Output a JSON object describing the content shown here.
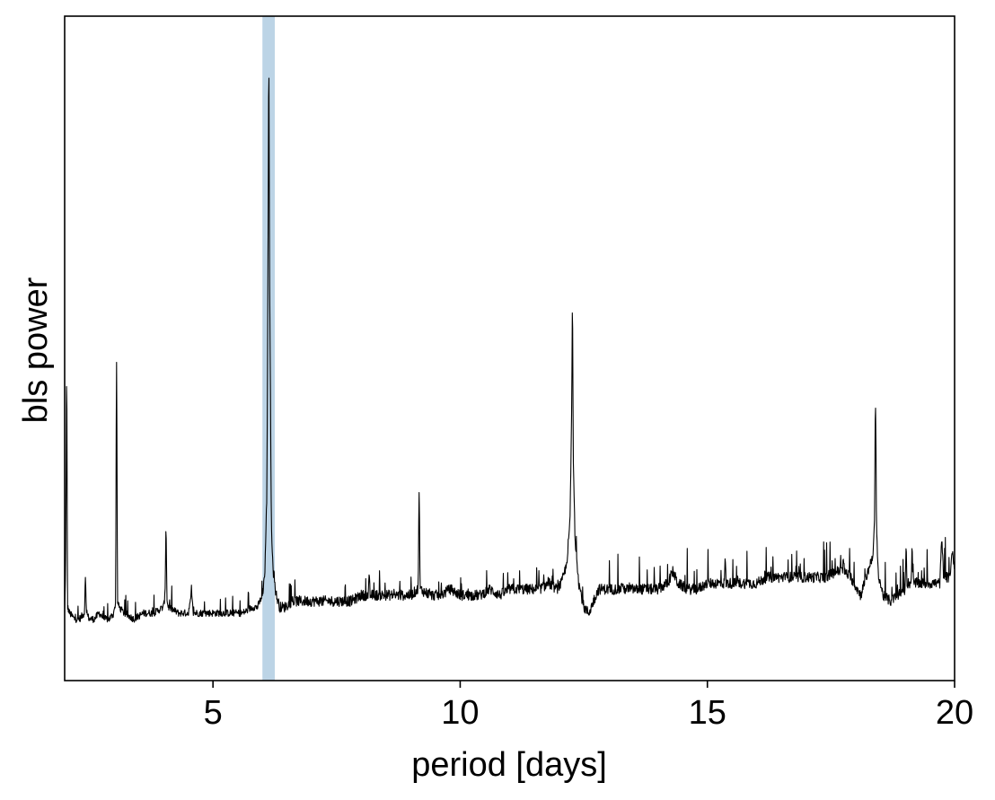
{
  "chart_data": {
    "type": "line",
    "title": "",
    "xlabel": "period [days]",
    "ylabel": "bls power",
    "xlim": [
      2,
      20
    ],
    "ylim": [
      0.0,
      1.0
    ],
    "x_ticks": [
      5,
      10,
      15,
      20
    ],
    "x_tick_labels": [
      "5",
      "10",
      "15",
      "20"
    ],
    "y_ticks": [],
    "grid": false,
    "legend": "none",
    "line_color": "#000000",
    "highlight": {
      "x_range": [
        6.0,
        6.25
      ],
      "color": "#bcd4e6"
    },
    "peaks": [
      {
        "x": 2.04,
        "y": 0.44
      },
      {
        "x": 2.42,
        "y": 0.11
      },
      {
        "x": 3.05,
        "y": 0.47
      },
      {
        "x": 4.05,
        "y": 0.19
      },
      {
        "x": 4.57,
        "y": 0.08
      },
      {
        "x": 6.13,
        "y": 0.96
      },
      {
        "x": 8.16,
        "y": 0.11
      },
      {
        "x": 9.17,
        "y": 0.25
      },
      {
        "x": 12.27,
        "y": 0.56
      },
      {
        "x": 13.27,
        "y": 0.1
      },
      {
        "x": 15.36,
        "y": 0.14
      },
      {
        "x": 17.75,
        "y": 0.14
      },
      {
        "x": 18.4,
        "y": 0.4
      },
      {
        "x": 19.02,
        "y": 0.16
      },
      {
        "x": 19.14,
        "y": 0.16
      },
      {
        "x": 19.74,
        "y": 0.17
      },
      {
        "x": 19.95,
        "y": 0.15
      }
    ],
    "series": [
      {
        "x": [
          2.0,
          2.02,
          2.04,
          2.06,
          2.1,
          2.2,
          2.3,
          2.4,
          2.42,
          2.44,
          2.5,
          2.6,
          2.7,
          2.8,
          2.9,
          3.0,
          3.03,
          3.05,
          3.07,
          3.1,
          3.2,
          3.4,
          3.6,
          3.8,
          4.0,
          4.03,
          4.05,
          4.07,
          4.1,
          4.3,
          4.5,
          4.57,
          4.6,
          4.8,
          5.0,
          5.2,
          5.4,
          5.6,
          5.8,
          5.9,
          6.0,
          6.05,
          6.09,
          6.11,
          6.13,
          6.15,
          6.18,
          6.22,
          6.28,
          6.35,
          6.45,
          6.6,
          6.8,
          7.0,
          7.2,
          7.4,
          7.6,
          7.8,
          8.0,
          8.14,
          8.16,
          8.18,
          8.4,
          8.6,
          8.8,
          9.0,
          9.15,
          9.17,
          9.19,
          9.4,
          9.6,
          9.8,
          10.0,
          10.2,
          10.4,
          10.6,
          10.8,
          11.0,
          11.2,
          11.4,
          11.6,
          11.8,
          11.95,
          12.05,
          12.15,
          12.22,
          12.25,
          12.27,
          12.29,
          12.32,
          12.4,
          12.5,
          12.6,
          12.7,
          12.8,
          13.0,
          13.25,
          13.27,
          13.29,
          13.5,
          13.8,
          14.0,
          14.2,
          14.3,
          14.4,
          14.6,
          14.8,
          15.0,
          15.2,
          15.34,
          15.36,
          15.38,
          15.6,
          15.8,
          16.0,
          16.2,
          16.4,
          16.6,
          16.8,
          17.0,
          17.2,
          17.4,
          17.6,
          17.73,
          17.75,
          17.77,
          17.9,
          18.1,
          18.25,
          18.35,
          18.38,
          18.4,
          18.42,
          18.45,
          18.55,
          18.7,
          18.85,
          19.0,
          19.02,
          19.04,
          19.12,
          19.14,
          19.16,
          19.3,
          19.5,
          19.7,
          19.74,
          19.78,
          19.9,
          19.95,
          20.0
        ],
        "y": [
          0.05,
          0.12,
          0.44,
          0.06,
          0.05,
          0.04,
          0.04,
          0.05,
          0.11,
          0.05,
          0.04,
          0.04,
          0.05,
          0.04,
          0.04,
          0.05,
          0.07,
          0.47,
          0.07,
          0.06,
          0.05,
          0.04,
          0.05,
          0.05,
          0.06,
          0.08,
          0.19,
          0.07,
          0.06,
          0.05,
          0.05,
          0.08,
          0.05,
          0.05,
          0.05,
          0.05,
          0.05,
          0.05,
          0.06,
          0.06,
          0.08,
          0.12,
          0.25,
          0.6,
          0.96,
          0.55,
          0.2,
          0.12,
          0.08,
          0.06,
          0.06,
          0.07,
          0.07,
          0.07,
          0.07,
          0.07,
          0.07,
          0.07,
          0.08,
          0.08,
          0.11,
          0.08,
          0.08,
          0.08,
          0.08,
          0.08,
          0.09,
          0.25,
          0.09,
          0.08,
          0.08,
          0.09,
          0.08,
          0.08,
          0.08,
          0.09,
          0.08,
          0.09,
          0.09,
          0.09,
          0.09,
          0.1,
          0.09,
          0.1,
          0.13,
          0.2,
          0.35,
          0.56,
          0.3,
          0.18,
          0.1,
          0.06,
          0.05,
          0.07,
          0.09,
          0.09,
          0.09,
          0.1,
          0.09,
          0.09,
          0.09,
          0.09,
          0.1,
          0.12,
          0.1,
          0.09,
          0.09,
          0.1,
          0.1,
          0.1,
          0.14,
          0.1,
          0.1,
          0.1,
          0.1,
          0.11,
          0.11,
          0.11,
          0.11,
          0.11,
          0.11,
          0.11,
          0.12,
          0.12,
          0.14,
          0.12,
          0.11,
          0.08,
          0.12,
          0.15,
          0.2,
          0.4,
          0.2,
          0.12,
          0.08,
          0.07,
          0.08,
          0.09,
          0.16,
          0.1,
          0.1,
          0.16,
          0.1,
          0.1,
          0.1,
          0.1,
          0.17,
          0.11,
          0.11,
          0.15,
          0.13
        ]
      }
    ]
  }
}
